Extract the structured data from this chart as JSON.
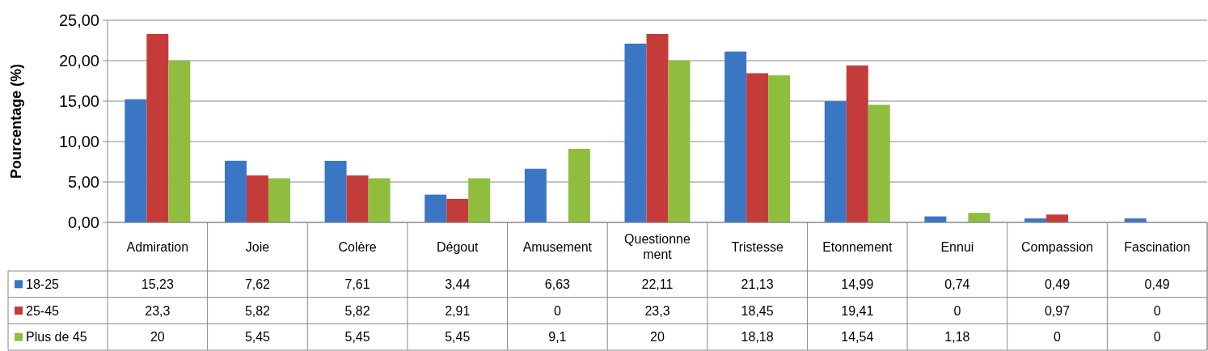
{
  "chart_data": {
    "type": "bar",
    "ylabel": "Pourcentage (%)",
    "categories": [
      "Admiration",
      "Joie",
      "Colère",
      "Dégout",
      "Amusement",
      "Questionnement",
      "Tristesse",
      "Etonnement",
      "Ennui",
      "Compassion",
      "Fascination"
    ],
    "series": [
      {
        "name": "18-25",
        "color": "#3b76c5",
        "values": [
          15.23,
          7.62,
          7.61,
          3.44,
          6.63,
          22.11,
          21.13,
          14.99,
          0.74,
          0.49,
          0.49
        ],
        "value_labels": [
          "15,23",
          "7,62",
          "7,61",
          "3,44",
          "6,63",
          "22,11",
          "21,13",
          "14,99",
          "0,74",
          "0,49",
          "0,49"
        ]
      },
      {
        "name": "25-45",
        "color": "#c43c3a",
        "values": [
          23.3,
          5.82,
          5.82,
          2.91,
          0,
          23.3,
          18.45,
          19.41,
          0,
          0.97,
          0
        ],
        "value_labels": [
          "23,3",
          "5,82",
          "5,82",
          "2,91",
          "0",
          "23,3",
          "18,45",
          "19,41",
          "0",
          "0,97",
          "0"
        ]
      },
      {
        "name": "Plus de 45",
        "color": "#8fbd3e",
        "values": [
          20,
          5.45,
          5.45,
          5.45,
          9.1,
          20,
          18.18,
          14.54,
          1.18,
          0,
          0
        ],
        "value_labels": [
          "20",
          "5,45",
          "5,45",
          "5,45",
          "9,1",
          "20",
          "18,18",
          "14,54",
          "1,18",
          "0",
          "0"
        ]
      }
    ],
    "ylim": [
      0,
      25
    ],
    "yticks": [
      {
        "value": 0,
        "label": "0,00"
      },
      {
        "value": 5,
        "label": "5,00"
      },
      {
        "value": 10,
        "label": "10,00"
      },
      {
        "value": 15,
        "label": "15,00"
      },
      {
        "value": 20,
        "label": "20,00"
      },
      {
        "value": 25,
        "label": "25,00"
      }
    ],
    "grid": "y",
    "legend": "bottom"
  }
}
